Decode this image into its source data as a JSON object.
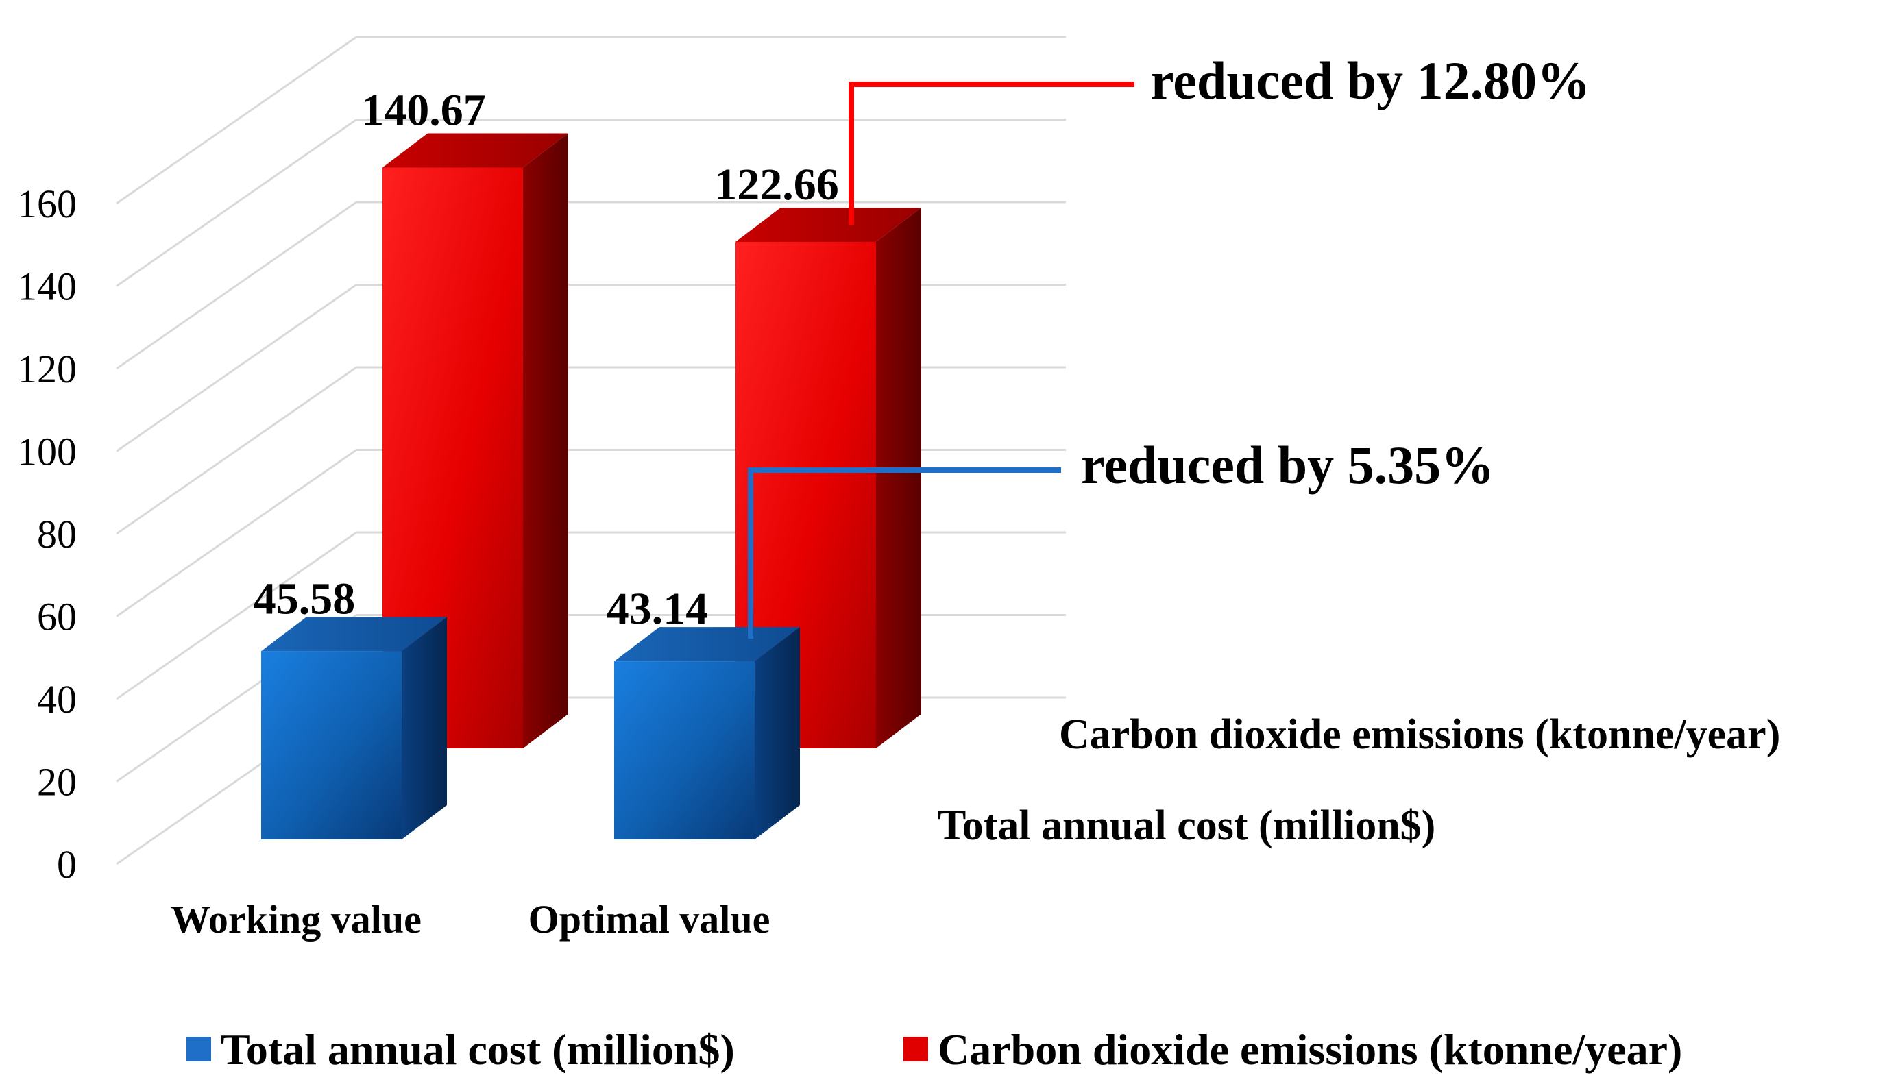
{
  "chart_data": {
    "type": "bar",
    "style": "3d-clustered-depth",
    "title": "",
    "xlabel": "",
    "ylabel": "",
    "ylim": [
      0,
      160
    ],
    "yticks": [
      0,
      20,
      40,
      60,
      80,
      100,
      120,
      140,
      160
    ],
    "grid": true,
    "categories": [
      "Working value",
      "Optimal value"
    ],
    "series": [
      {
        "name": "Total annual cost (million$)",
        "values": [
          45.58,
          43.14
        ],
        "value_labels": [
          "45.58",
          "43.14"
        ],
        "color": "#1f6fc8",
        "depth_position": "front"
      },
      {
        "name": "Carbon dioxide emissions (ktonne/year)",
        "values": [
          140.67,
          122.66
        ],
        "value_labels": [
          "140.67",
          "122.66"
        ],
        "color": "#e00000",
        "depth_position": "back"
      }
    ],
    "annotations": [
      {
        "text": "reduced by 12.80%",
        "series": "Carbon dioxide emissions (ktonne/year)",
        "color": "#ff0000"
      },
      {
        "text": "reduced by 5.35%",
        "series": "Total annual cost (million$)",
        "color": "#1f6fc8"
      }
    ],
    "legend": {
      "position": "bottom",
      "items": [
        {
          "label": "Total annual cost (million$)",
          "color": "#1f6fc8"
        },
        {
          "label": "Carbon dioxide emissions (ktonne/year)",
          "color": "#e00000"
        }
      ]
    }
  }
}
